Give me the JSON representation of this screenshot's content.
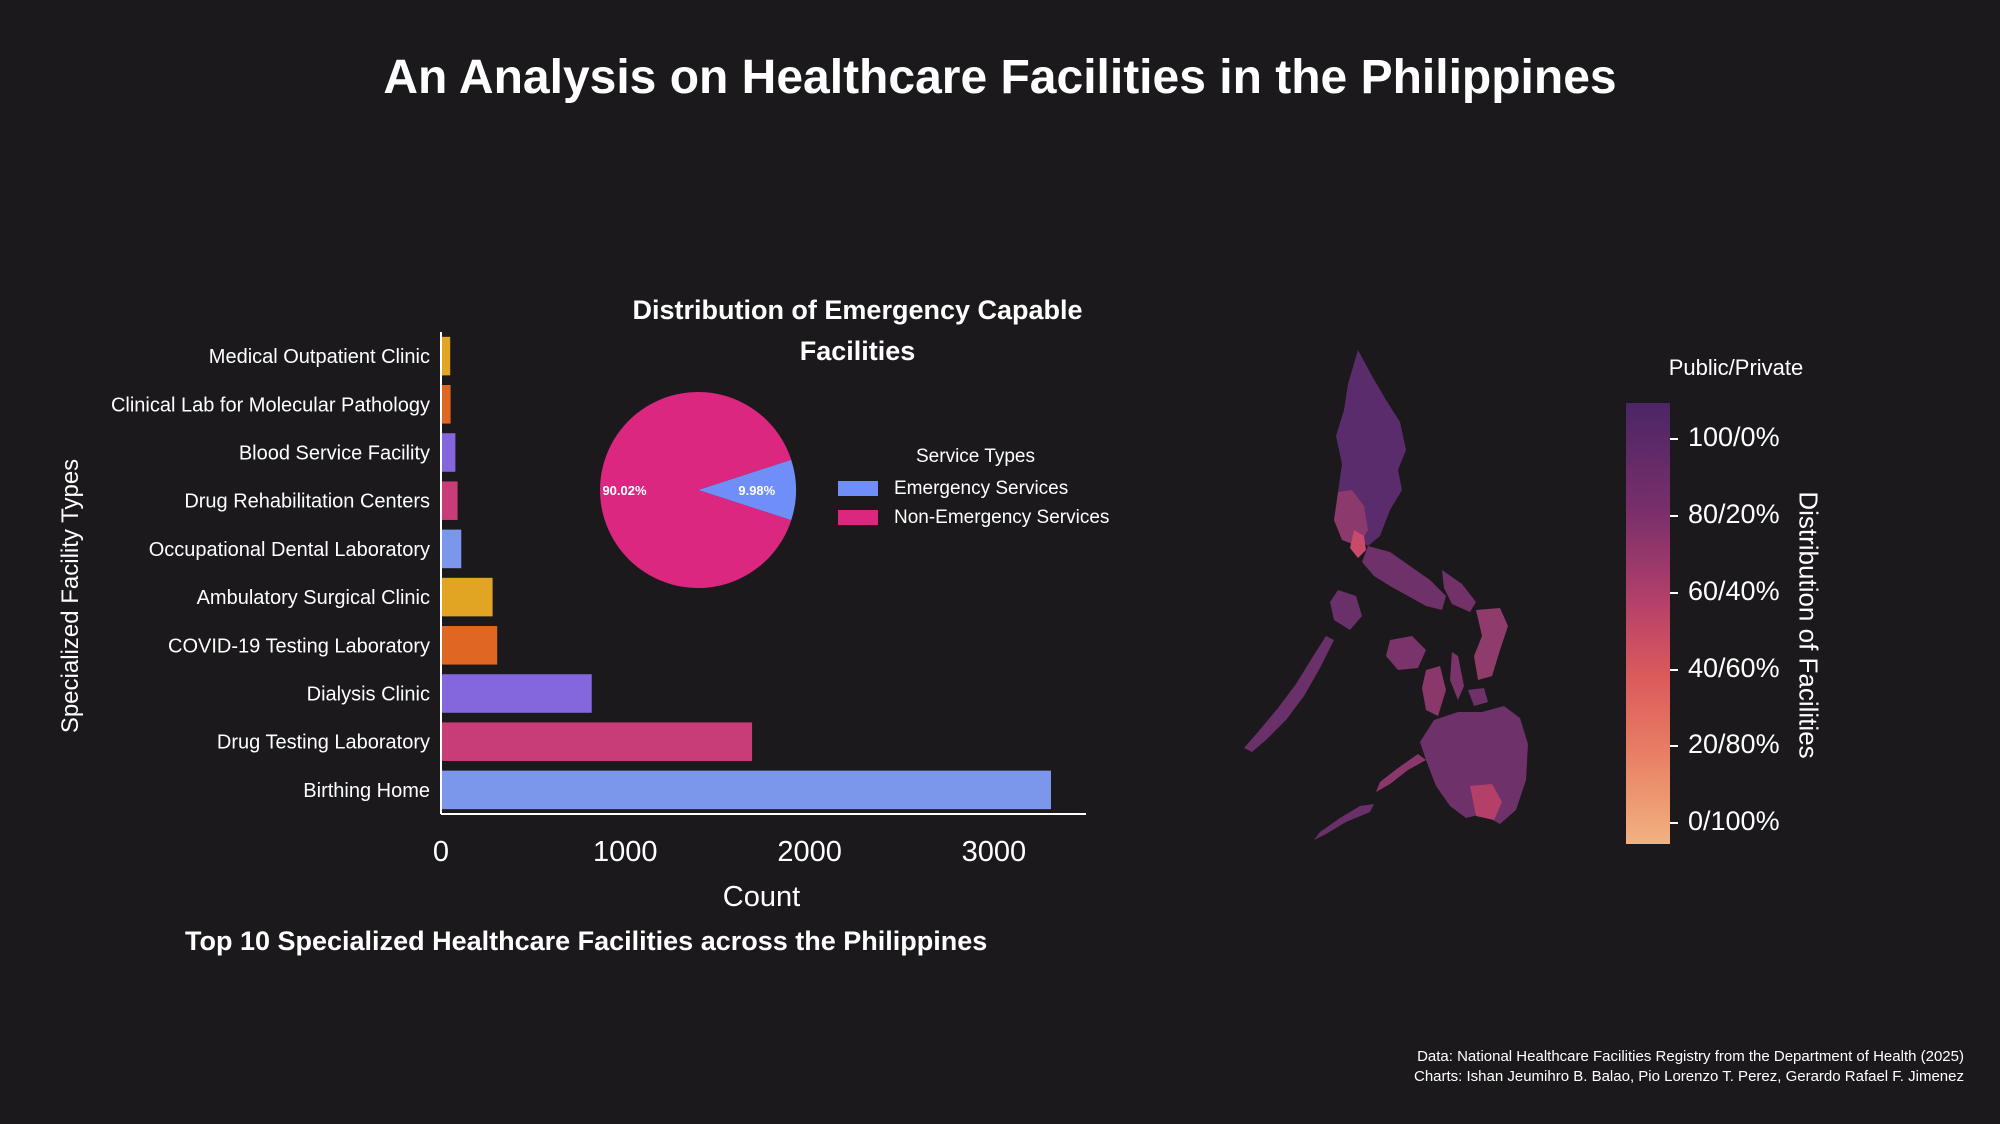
{
  "main_title": "An Analysis on Healthcare Facilities in the Philippines",
  "chart_data": [
    {
      "type": "bar",
      "orientation": "horizontal",
      "title": "Top 10 Specialized Healthcare Facilities across the Philippines",
      "xlabel": "Count",
      "ylabel": "Specialized Facility Types",
      "xlim": [
        0,
        3500
      ],
      "xticks": [
        0,
        1000,
        2000,
        3000
      ],
      "categories": [
        "Birthing Home",
        "Drug Testing Laboratory",
        "Dialysis Clinic",
        "COVID-19 Testing Laboratory",
        "Ambulatory Surgical Clinic",
        "Occupational Dental Laboratory",
        "Drug Rehabilitation Centers",
        "Blood Service Facility",
        "Clinical Lab for Molecular Pathology",
        "Medical Outpatient Clinic"
      ],
      "values": [
        3310,
        1688,
        818,
        305,
        280,
        110,
        90,
        78,
        52,
        50
      ],
      "colors": [
        "#7b97ec",
        "#c83c78",
        "#8467dd",
        "#e06623",
        "#e2a523",
        "#7b97ec",
        "#c83c78",
        "#8467dd",
        "#e06623",
        "#e2a523"
      ]
    },
    {
      "type": "pie",
      "title": "Distribution of Emergency Capable Facilities",
      "legend_title": "Service Types",
      "labels": [
        "Emergency Services",
        "Non-Emergency Services"
      ],
      "values": [
        9.98,
        90.02
      ],
      "value_labels": [
        "9.98%",
        "90.02%"
      ],
      "colors": [
        "#6f8ef8",
        "#dc2780"
      ]
    },
    {
      "type": "choropleth",
      "colorbar_title": "Public/Private",
      "colorbar_label": "Distribution of Facilities",
      "colorbar_ticks": [
        "100/0%",
        "80/20%",
        "60/40%",
        "40/60%",
        "20/80%",
        "0/100%"
      ],
      "colorbar_tick_values": [
        100,
        80,
        60,
        40,
        20,
        0
      ]
    }
  ],
  "credits": {
    "line1": "Data: National Healthcare Facilities Registry from the Department of Health (2025)",
    "line2": "Charts: Ishan Jeumihro B. Balao, Pio Lorenzo T. Perez, Gerardo Rafael F. Jimenez"
  }
}
